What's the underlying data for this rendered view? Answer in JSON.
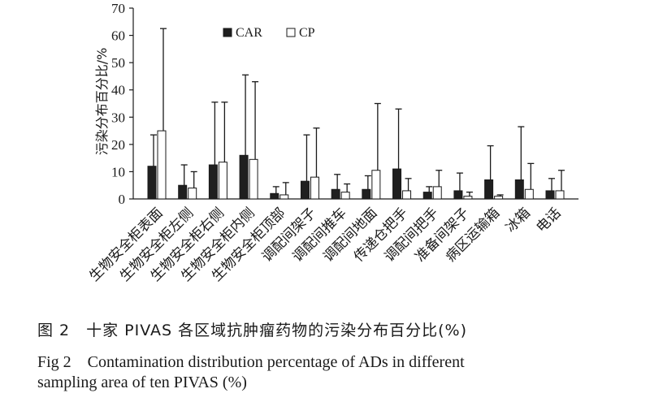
{
  "chart_data": {
    "type": "bar",
    "ylabel": "污染分布百分比/%",
    "ylim": [
      0,
      70
    ],
    "yticks": [
      0,
      10,
      20,
      30,
      40,
      50,
      60,
      70
    ],
    "legend_position": "top-right",
    "categories": [
      "生物安全柜表面",
      "生物安全柜左侧",
      "生物安全柜右侧",
      "生物安全柜内侧",
      "生物安全柜顶部",
      "调配间架子",
      "调配间推车",
      "调配间地面",
      "传递仓把手",
      "调配间把手",
      "准备间架子",
      "病区运输箱",
      "冰箱",
      "电话"
    ],
    "series": [
      {
        "name": "CAR",
        "color": "#1f1f1f",
        "values": [
          12,
          5,
          12.5,
          16,
          2,
          6.5,
          3.5,
          3.5,
          11,
          2.5,
          3,
          7,
          7,
          3
        ],
        "error": [
          11.5,
          7.5,
          23,
          29.5,
          2.5,
          17,
          5.5,
          5,
          22,
          2,
          6.5,
          12.5,
          19.5,
          4.5
        ]
      },
      {
        "name": "CP",
        "color": "#ffffff",
        "values": [
          25,
          4,
          13.5,
          14.5,
          1.5,
          8,
          2.5,
          10.5,
          3,
          4.5,
          1,
          1,
          3.5,
          3
        ],
        "error": [
          37.5,
          6,
          22,
          28.5,
          4.5,
          18,
          3,
          24.5,
          4.5,
          6,
          1.5,
          0.5,
          9.5,
          7.5
        ]
      }
    ]
  },
  "caption": {
    "cn": "图 2　十家 PIVAS 各区域抗肿瘤药物的污染分布百分比(%)",
    "en_line1": "Fig 2　Contamination distribution percentage of ADs in different",
    "en_line2": "sampling area of ten PIVAS (%)"
  }
}
